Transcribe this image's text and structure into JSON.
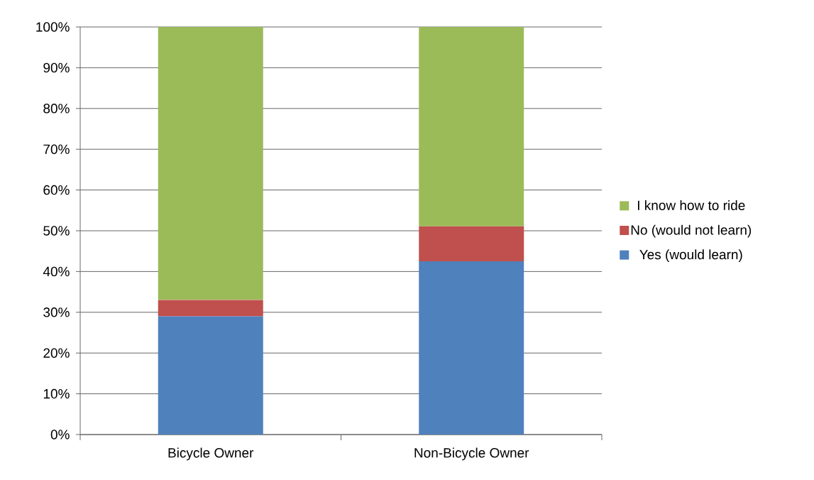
{
  "chart_data": {
    "type": "bar",
    "stacked": true,
    "categories": [
      "Bicycle Owner",
      "Non-Bicycle Owner"
    ],
    "series": [
      {
        "name": "Yes (would learn)",
        "color": "#4f81bd",
        "values": [
          29,
          42.5
        ]
      },
      {
        "name": "No (would not learn)",
        "color": "#c0504d",
        "values": [
          4,
          8.6
        ]
      },
      {
        "name": "I know how to ride",
        "color": "#9bbb59",
        "values": [
          67,
          48.9
        ]
      }
    ],
    "ylim": [
      0,
      100
    ],
    "yticks": [
      {
        "value": 0,
        "label": "0%"
      },
      {
        "value": 10,
        "label": "10%"
      },
      {
        "value": 20,
        "label": "20%"
      },
      {
        "value": 30,
        "label": "30%"
      },
      {
        "value": 40,
        "label": "40%"
      },
      {
        "value": 50,
        "label": "50%"
      },
      {
        "value": 60,
        "label": "60%"
      },
      {
        "value": 70,
        "label": "70%"
      },
      {
        "value": 80,
        "label": "80%"
      },
      {
        "value": 90,
        "label": "90%"
      },
      {
        "value": 100,
        "label": "100%"
      }
    ],
    "grid": "y",
    "legend": "right"
  }
}
